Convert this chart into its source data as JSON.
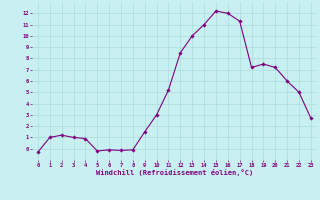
{
  "x": [
    0,
    1,
    2,
    3,
    4,
    5,
    6,
    7,
    8,
    9,
    10,
    11,
    12,
    13,
    14,
    15,
    16,
    17,
    18,
    19,
    20,
    21,
    22,
    23
  ],
  "y": [
    -0.3,
    1.0,
    1.2,
    1.0,
    0.9,
    -0.2,
    -0.1,
    -0.15,
    -0.1,
    1.5,
    3.0,
    5.2,
    8.5,
    10.0,
    11.0,
    12.2,
    12.0,
    11.3,
    7.2,
    7.5,
    7.2,
    6.0,
    5.0,
    2.7
  ],
  "line_color": "#800080",
  "marker": "D",
  "marker_size": 1.8,
  "bg_color": "#c8f0f0",
  "grid_color": "#aadddd",
  "xlabel": "Windchill (Refroidissement éolien,°C)",
  "xlabel_color": "#800080",
  "tick_color": "#800080",
  "ylim": [
    -1,
    13
  ],
  "xlim": [
    -0.5,
    23.5
  ],
  "yticks": [
    0,
    1,
    2,
    3,
    4,
    5,
    6,
    7,
    8,
    9,
    10,
    11,
    12
  ],
  "xticks": [
    0,
    1,
    2,
    3,
    4,
    5,
    6,
    7,
    8,
    9,
    10,
    11,
    12,
    13,
    14,
    15,
    16,
    17,
    18,
    19,
    20,
    21,
    22,
    23
  ]
}
